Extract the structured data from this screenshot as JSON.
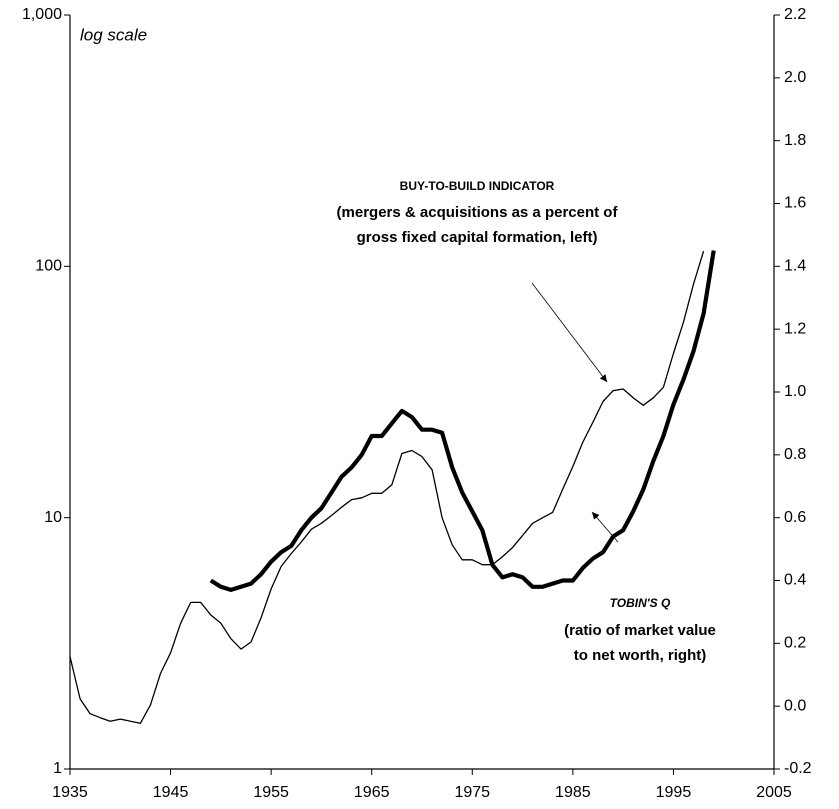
{
  "chart_data": {
    "type": "line",
    "xlim": [
      1935,
      2005
    ],
    "xticks": [
      1935,
      1945,
      1955,
      1965,
      1975,
      1985,
      1995,
      2005
    ],
    "ylim": [
      1,
      1000
    ],
    "ylog": true,
    "yticks": [
      1,
      10,
      100,
      {
        "value": 1000,
        "label": "1,000"
      }
    ],
    "y2lim": [
      -0.2,
      2.2
    ],
    "y2ticks": [
      -0.2,
      {
        "value": 0,
        "label": "0.0"
      },
      0.2,
      0.4,
      0.6,
      0.8,
      {
        "value": 1,
        "label": "1.0"
      },
      1.2,
      1.4,
      1.6,
      1.8,
      {
        "value": 2,
        "label": "2.0"
      },
      2.2
    ],
    "axis_note": "log scale",
    "series": [
      {
        "color": "#000000",
        "axis": "y",
        "x": [
          1935,
          1936,
          1937,
          1938,
          1939,
          1940,
          1941,
          1942,
          1943,
          1944,
          1945,
          1946,
          1947,
          1948,
          1949,
          1950,
          1951,
          1952,
          1953,
          1954,
          1955,
          1956,
          1957,
          1958,
          1959,
          1960,
          1961,
          1962,
          1963,
          1964,
          1965,
          1966,
          1967,
          1968,
          1969,
          1970,
          1971,
          1972,
          1973,
          1974,
          1975,
          1976,
          1977,
          1978,
          1979,
          1980,
          1981,
          1982,
          1983,
          1984,
          1985,
          1986,
          1987,
          1988,
          1989,
          1990,
          1991,
          1992,
          1993,
          1994,
          1995,
          1996,
          1997,
          1998
        ],
        "values": [
          2.8,
          1.9,
          1.66,
          1.6,
          1.55,
          1.58,
          1.55,
          1.52,
          1.8,
          2.4,
          2.9,
          3.8,
          4.6,
          4.6,
          4.1,
          3.8,
          3.3,
          3.0,
          3.2,
          4.0,
          5.2,
          6.4,
          7.2,
          8.0,
          9.0,
          9.5,
          10.2,
          11.0,
          11.8,
          12.0,
          12.5,
          12.5,
          13.5,
          18,
          18.5,
          17.5,
          15.5,
          10,
          7.8,
          6.8,
          6.8,
          6.5,
          6.5,
          7.0,
          7.6,
          8.5,
          9.5,
          10,
          10.5,
          13,
          16,
          20,
          24,
          29,
          32,
          32.5,
          30,
          28,
          30,
          33,
          45,
          60,
          85,
          115
        ]
      },
      {
        "color": "#000000",
        "axis": "y2",
        "x": [
          1949,
          1950,
          1951,
          1952,
          1953,
          1954,
          1955,
          1956,
          1957,
          1958,
          1959,
          1960,
          1961,
          1962,
          1963,
          1964,
          1965,
          1966,
          1967,
          1968,
          1969,
          1970,
          1971,
          1972,
          1973,
          1974,
          1975,
          1976,
          1977,
          1978,
          1979,
          1980,
          1981,
          1982,
          1983,
          1984,
          1985,
          1986,
          1987,
          1988,
          1989,
          1990,
          1991,
          1992,
          1993,
          1994,
          1995,
          1996,
          1997,
          1998,
          1999
        ],
        "values": [
          0.4,
          0.38,
          0.37,
          0.38,
          0.39,
          0.42,
          0.46,
          0.49,
          0.51,
          0.56,
          0.6,
          0.63,
          0.68,
          0.73,
          0.76,
          0.8,
          0.86,
          0.86,
          0.9,
          0.94,
          0.92,
          0.88,
          0.88,
          0.87,
          0.76,
          0.68,
          0.62,
          0.56,
          0.45,
          0.41,
          0.42,
          0.41,
          0.38,
          0.38,
          0.39,
          0.4,
          0.4,
          0.44,
          0.47,
          0.49,
          0.54,
          0.56,
          0.62,
          0.69,
          0.78,
          0.86,
          0.96,
          1.04,
          1.13,
          1.25,
          1.45
        ]
      }
    ],
    "annotations": [
      {
        "lines": [
          "BUY-TO-BUILD INDICATOR",
          "(mergers & acquisitions as a percent of",
          "gross fixed capital formation, left)"
        ]
      },
      {
        "lines": [
          "TOBIN'S Q",
          "(ratio of market value",
          "to net worth, right)"
        ]
      }
    ]
  }
}
